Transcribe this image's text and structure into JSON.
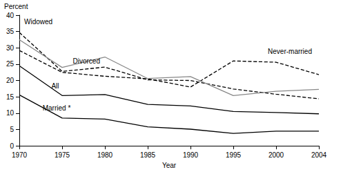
{
  "chart_data": {
    "type": "line",
    "x_label": "Year",
    "y_label": "Percent",
    "categories": [
      "1970",
      "1975",
      "1980",
      "1985",
      "1990",
      "1995",
      "2000",
      "2004"
    ],
    "ylim": [
      0,
      40
    ],
    "yticks": [
      0,
      5,
      10,
      15,
      20,
      25,
      30,
      35,
      40
    ],
    "grid": false,
    "series": [
      {
        "name": "Widowed",
        "color": "#000000",
        "line_style": "dashed",
        "values": [
          34.7,
          22.8,
          24.1,
          20.2,
          20.0,
          17.4,
          15.8,
          14.4
        ]
      },
      {
        "name": "Never-married",
        "color": "#000000",
        "line_style": "dashed",
        "values": [
          29.2,
          22.5,
          21.3,
          20.5,
          18.0,
          26.0,
          25.6,
          21.8
        ]
      },
      {
        "name": "Divorced",
        "color": "#888888",
        "line_style": "solid",
        "values": [
          32.5,
          24.0,
          27.2,
          20.6,
          21.2,
          15.4,
          16.7,
          17.3
        ]
      },
      {
        "name": "All",
        "color": "#000000",
        "line_style": "solid",
        "values": [
          24.5,
          15.4,
          15.7,
          12.7,
          12.2,
          10.5,
          10.2,
          9.8
        ]
      },
      {
        "name": "Married *",
        "color": "#000000",
        "line_style": "solid",
        "values": [
          15.6,
          8.5,
          8.2,
          5.8,
          5.1,
          3.8,
          4.5,
          4.5
        ]
      }
    ]
  }
}
